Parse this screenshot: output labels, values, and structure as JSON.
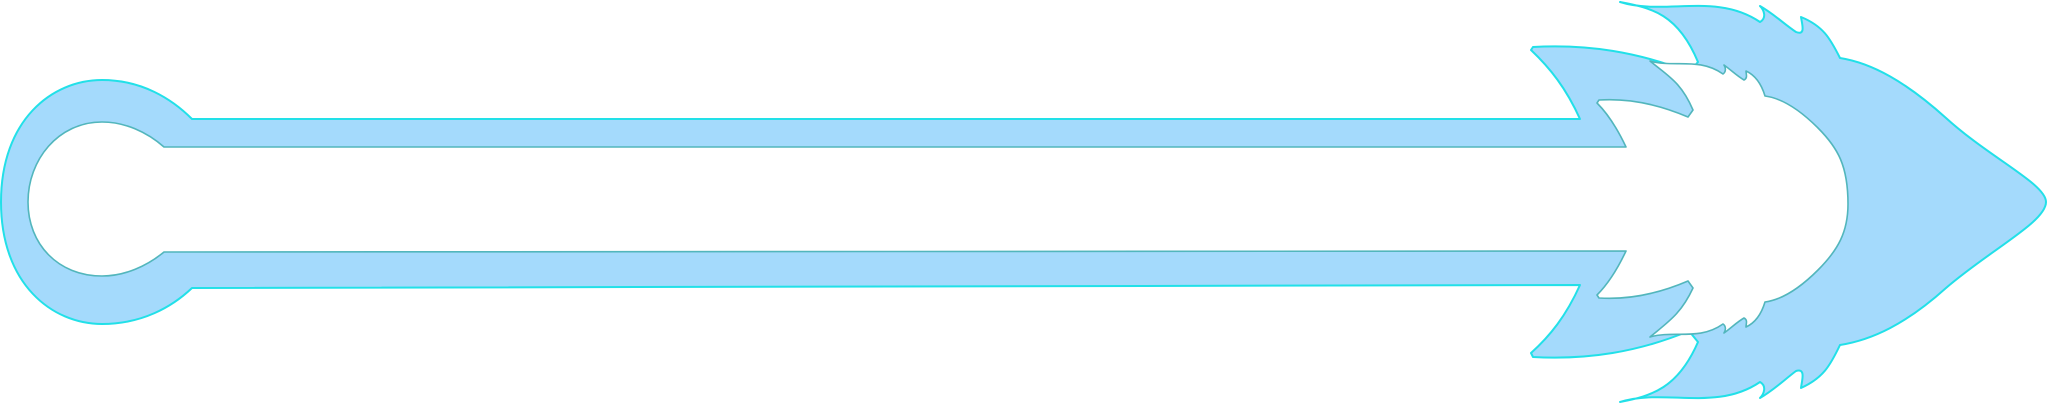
{
  "graphic": {
    "name": "arrow-frame",
    "colors": {
      "fill": "#a4dafc",
      "outline": "#22e0e8",
      "inner_outline": "#52b6bc",
      "background": "#ffffff"
    }
  }
}
